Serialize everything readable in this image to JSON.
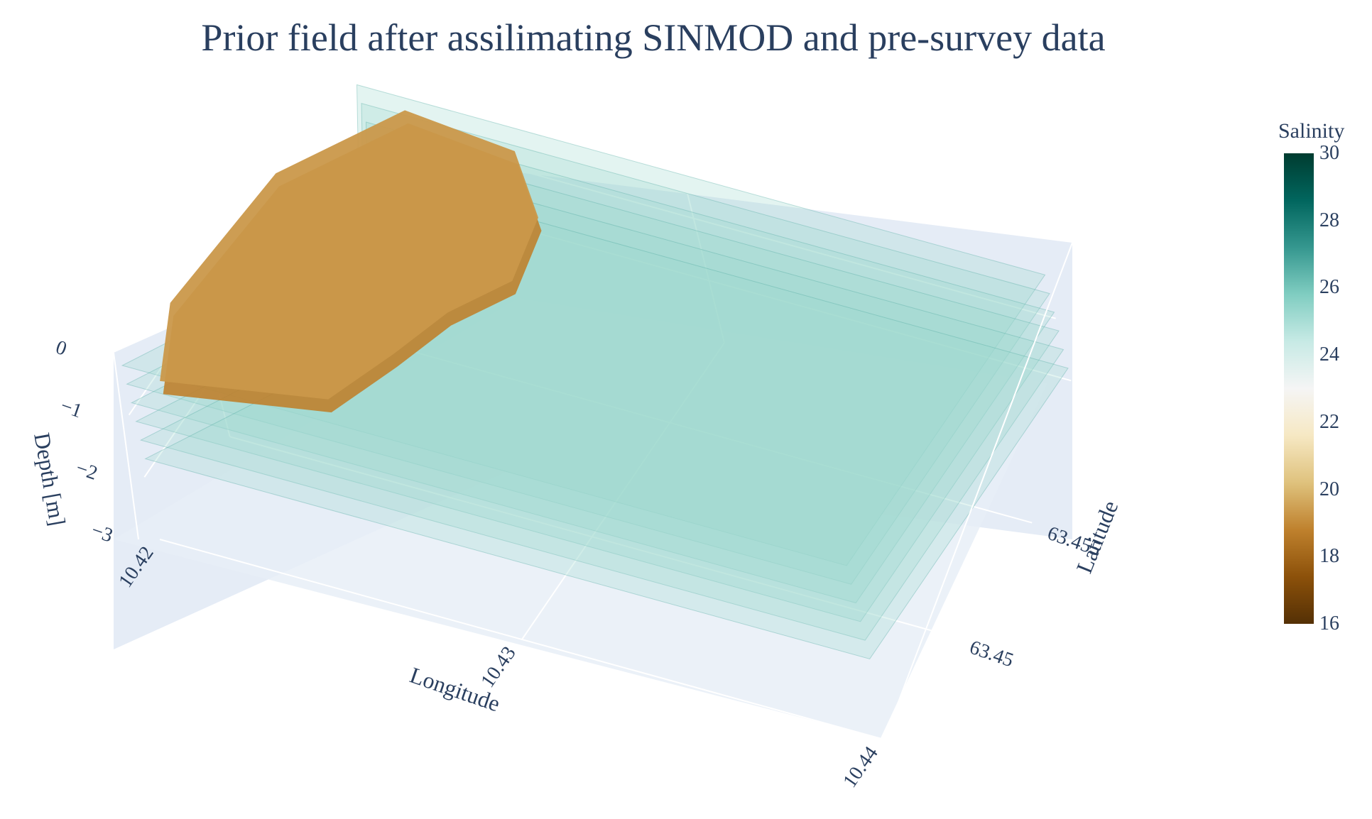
{
  "title": "Prior field after assilimating SINMOD and pre-survey data",
  "colorbar": {
    "title": "Salinity",
    "range": [
      16,
      30
    ],
    "ticks": [
      "16",
      "18",
      "20",
      "22",
      "24",
      "26",
      "28",
      "30"
    ],
    "stops": [
      "#543005",
      "#8c510a",
      "#bf812d",
      "#dfc27d",
      "#f6e8c3",
      "#f5f5f5",
      "#c7eae5",
      "#80cdc1",
      "#35978f",
      "#01665e",
      "#003c30"
    ]
  },
  "chart_data": {
    "type": "isosurface-3d",
    "title": "Prior field after assilimating SINMOD and pre-survey data",
    "x_axis": {
      "label": "Longitude",
      "range": [
        10.42,
        10.44
      ],
      "ticks": [
        "10.42",
        "10.43",
        "10.44"
      ]
    },
    "y_axis": {
      "label": "Latitude",
      "range": [
        63.4455,
        63.4585
      ],
      "ticks": [
        "63.45",
        "63.455"
      ]
    },
    "z_axis": {
      "label": "Depth [m]",
      "range": [
        -3,
        0
      ],
      "ticks": [
        "0",
        "−1",
        "−2",
        "−3"
      ]
    },
    "color_variable": "Salinity",
    "color_range": [
      16,
      30
    ],
    "layers": [
      {
        "depth": -0.3,
        "salinity": 25.3
      },
      {
        "depth": -0.6,
        "salinity": 25.3
      },
      {
        "depth": -0.9,
        "salinity": 25.3
      },
      {
        "depth": -1.2,
        "salinity": 25.3
      },
      {
        "depth": -1.5,
        "salinity": 25.3
      },
      {
        "depth": -1.8,
        "salinity": 25.3
      }
    ],
    "low_salinity_region": {
      "salinity": 19.3,
      "depth": -0.6
    },
    "background": "#e5ecf6",
    "grid": true
  }
}
